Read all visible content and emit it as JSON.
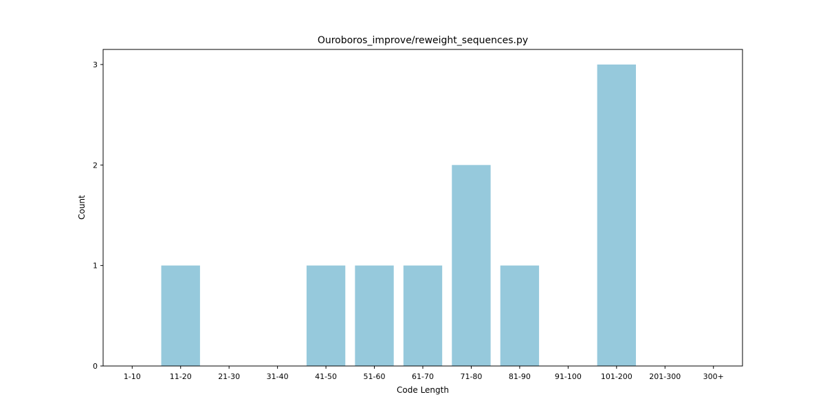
{
  "chart_data": {
    "type": "bar",
    "title": "Ouroboros_improve/reweight_sequences.py",
    "xlabel": "Code Length",
    "ylabel": "Count",
    "categories": [
      "1-10",
      "11-20",
      "21-30",
      "31-40",
      "41-50",
      "51-60",
      "61-70",
      "71-80",
      "81-90",
      "91-100",
      "101-200",
      "201-300",
      "300+"
    ],
    "values": [
      0,
      1,
      0,
      0,
      1,
      1,
      1,
      2,
      1,
      0,
      3,
      0,
      0
    ],
    "yticks": [
      0,
      1,
      2,
      3
    ],
    "ylim": [
      0,
      3.15
    ],
    "bar_color": "#96c9dc",
    "grid": false
  }
}
